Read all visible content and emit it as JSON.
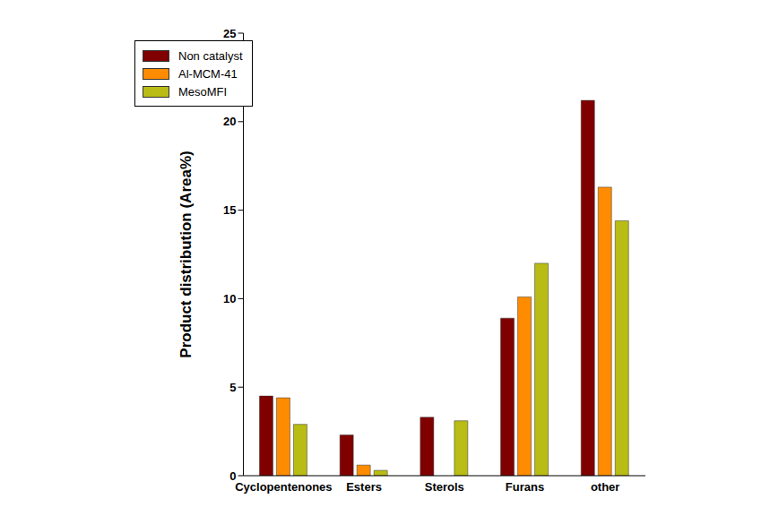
{
  "chart_data": {
    "type": "bar",
    "y_label": "Product distribution (Area%)",
    "categories": [
      "Cyclopentenones",
      "Esters",
      "Sterols",
      "Furans",
      "other"
    ],
    "series": [
      {
        "name": "Non catalyst",
        "color": "#800000",
        "values": [
          4.5,
          2.3,
          3.3,
          8.9,
          21.2
        ]
      },
      {
        "name": "Al-MCM-41",
        "color": "#ff8c00",
        "values": [
          4.4,
          0.6,
          0,
          10.1,
          16.3
        ]
      },
      {
        "name": "MesoMFI",
        "color": "#b8bc14",
        "values": [
          2.9,
          0.3,
          3.1,
          12.0,
          14.4
        ]
      }
    ],
    "ylim": [
      0,
      25
    ],
    "yticks": [
      0,
      5,
      10,
      15,
      20,
      25
    ],
    "legend": "upper left"
  }
}
